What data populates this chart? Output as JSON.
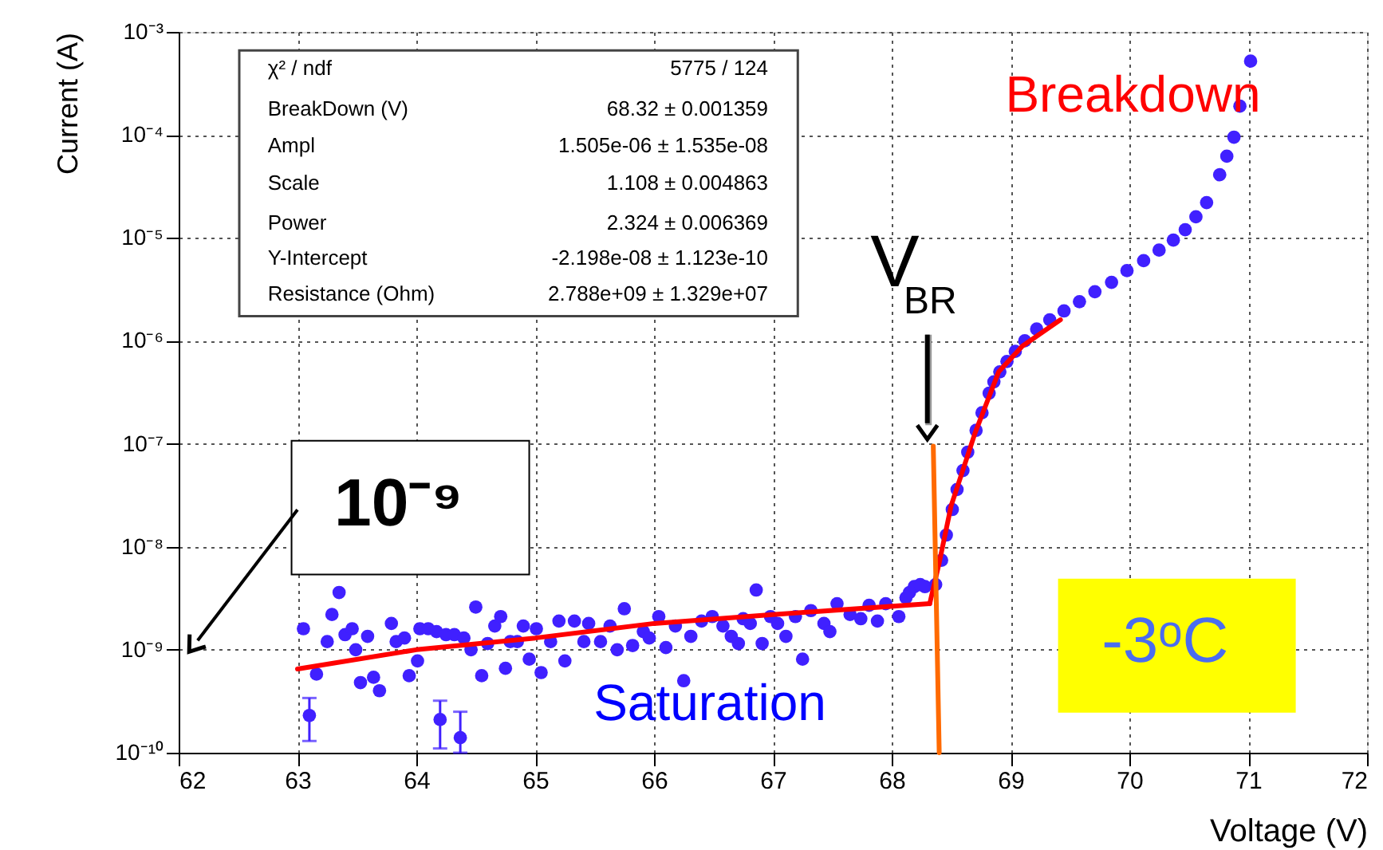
{
  "chart_data": {
    "type": "scatter",
    "xlabel": "Voltage (V)",
    "ylabel": "Current (A)",
    "xlim": [
      62,
      72
    ],
    "xticks": [
      62,
      63,
      64,
      65,
      66,
      67,
      68,
      69,
      70,
      71,
      72
    ],
    "ylim": [
      1e-10,
      0.001
    ],
    "log": true,
    "yticks": [
      {
        "value": 1e-10,
        "label": "10⁻¹⁰"
      },
      {
        "value": 1e-09,
        "label": "10⁻⁹"
      },
      {
        "value": 1e-08,
        "label": "10⁻⁸"
      },
      {
        "value": 1e-07,
        "label": "10⁻⁷"
      },
      {
        "value": 1e-06,
        "label": "10⁻⁶"
      },
      {
        "value": 1e-05,
        "label": "10⁻⁵"
      },
      {
        "value": 0.0001,
        "label": "10⁻⁴"
      },
      {
        "value": 0.001,
        "label": "10⁻³"
      }
    ],
    "grid": true,
    "series": [
      {
        "color": "#4020ff",
        "marker": "circle",
        "x": [
          63.05,
          63.1,
          63.16,
          63.25,
          63.29,
          63.35,
          63.4,
          63.46,
          63.49,
          63.53,
          63.59,
          63.64,
          63.69,
          63.79,
          63.83,
          63.9,
          63.94,
          64.01,
          64.03,
          64.1,
          64.17,
          64.2,
          64.25,
          64.32,
          64.37,
          64.4,
          64.46,
          64.5,
          64.55,
          64.6,
          64.66,
          64.71,
          64.75,
          64.79,
          64.85,
          64.9,
          64.95,
          65.01,
          65.05,
          65.13,
          65.2,
          65.25,
          65.33,
          65.41,
          65.45,
          65.55,
          65.63,
          65.69,
          65.75,
          65.82,
          65.91,
          65.96,
          66.04,
          66.1,
          66.18,
          66.25,
          66.31,
          66.4,
          66.49,
          66.58,
          66.65,
          66.71,
          66.75,
          66.81,
          66.86,
          66.91,
          66.98,
          67.04,
          67.11,
          67.19,
          67.25,
          67.32,
          67.43,
          67.48,
          67.54,
          67.65,
          67.74,
          67.81,
          67.88,
          67.95,
          68.06,
          68.12,
          68.15,
          68.19,
          68.24,
          68.28,
          68.37,
          68.42,
          68.46,
          68.51,
          68.55,
          68.6,
          68.64,
          68.71,
          68.76,
          68.82,
          68.86,
          68.91,
          68.97,
          69.04,
          69.12,
          69.22,
          69.33,
          69.45,
          69.58,
          69.71,
          69.85,
          69.98,
          70.12,
          70.25,
          70.37,
          70.47,
          70.56,
          70.65,
          70.76,
          70.82,
          70.88,
          70.93,
          71.02
        ],
        "values": [
          1.6e-09,
          2.3e-10,
          5.8e-10,
          1.2e-09,
          2.2e-09,
          3.6e-09,
          1.4e-09,
          1.6e-09,
          1e-09,
          4.8e-10,
          1.35e-09,
          5.4e-10,
          4e-10,
          1.8e-09,
          1.2e-09,
          1.3e-09,
          5.6e-10,
          7.8e-10,
          1.6e-09,
          1.6e-09,
          1.5e-09,
          2.1e-10,
          1.4e-09,
          1.4e-09,
          1.4e-10,
          1.3e-09,
          1e-09,
          2.6e-09,
          5.6e-10,
          1.15e-09,
          1.7e-09,
          2.1e-09,
          6.6e-10,
          1.2e-09,
          1.2e-09,
          1.7e-09,
          8.1e-10,
          1.6e-09,
          6e-10,
          1.2e-09,
          1.9e-09,
          7.8e-10,
          1.9e-09,
          1.2e-09,
          1.8e-09,
          1.2e-09,
          1.7e-09,
          1e-09,
          2.5e-09,
          1.1e-09,
          1.5e-09,
          1.3e-09,
          2.1e-09,
          1.05e-09,
          1.7e-09,
          5e-10,
          1.35e-09,
          1.9e-09,
          2.1e-09,
          1.7e-09,
          1.35e-09,
          1.15e-09,
          2e-09,
          1.8e-09,
          3.8e-09,
          1.15e-09,
          2.1e-09,
          1.8e-09,
          1.35e-09,
          2.1e-09,
          8.1e-10,
          2.4e-09,
          1.8e-09,
          1.5e-09,
          2.8e-09,
          2.2e-09,
          2e-09,
          2.7e-09,
          1.9e-09,
          2.8e-09,
          2.1e-09,
          3.2e-09,
          3.6e-09,
          4.1e-09,
          4.3e-09,
          4.1e-09,
          4.3e-09,
          7.4e-09,
          1.3e-08,
          2.3e-08,
          3.6e-08,
          5.5e-08,
          8.3e-08,
          1.35e-07,
          2e-07,
          3.1e-07,
          4e-07,
          5e-07,
          6.3e-07,
          7.9e-07,
          1e-06,
          1.3e-06,
          1.6e-06,
          1.95e-06,
          2.4e-06,
          3e-06,
          3.7e-06,
          4.8e-06,
          6e-06,
          7.6e-06,
          9.5e-06,
          1.2e-05,
          1.6e-05,
          2.2e-05,
          4.1e-05,
          6.2e-05,
          9.5e-05,
          0.00019,
          0.00052
        ],
        "errors": [
          null,
          [
            1.3e-10,
            3.4e-10
          ],
          null,
          null,
          null,
          null,
          null,
          null,
          null,
          null,
          null,
          null,
          null,
          null,
          null,
          null,
          null,
          null,
          null,
          null,
          null,
          [
            1.1e-10,
            3.2e-10
          ],
          null,
          null,
          [
            1e-10,
            2.5e-10
          ],
          null,
          null,
          null,
          null,
          null,
          null,
          null,
          null,
          null,
          null,
          null,
          null,
          null,
          null,
          null,
          null,
          null,
          null,
          null,
          null,
          null,
          null,
          null,
          null,
          null,
          null,
          null,
          null,
          null,
          null,
          null,
          null,
          null,
          null,
          null,
          null,
          null,
          null,
          null,
          null,
          null,
          null,
          null,
          null,
          null,
          null,
          null,
          null,
          null,
          null,
          null,
          null,
          null,
          null,
          null,
          null,
          null,
          null,
          null,
          null,
          null,
          null,
          null,
          null,
          null,
          null,
          null,
          null,
          null,
          null,
          null,
          null,
          null,
          null,
          null,
          null,
          null,
          null,
          null,
          null,
          null,
          null,
          null,
          null,
          null,
          null,
          null,
          null,
          null,
          null,
          null,
          null,
          null,
          null
        ]
      },
      {
        "type": "line",
        "color": "#ff0000",
        "x": [
          63.0,
          64,
          65,
          66,
          67,
          68.32
        ],
        "values": [
          6.5e-10,
          1e-09,
          1.3e-09,
          1.8e-09,
          2.2e-09,
          2.8e-09
        ]
      },
      {
        "type": "line",
        "color": "#ff0000",
        "x": [
          68.32,
          68.4,
          68.5,
          68.6,
          68.7,
          68.9,
          69.1,
          69.42
        ],
        "values": [
          2.8e-09,
          7e-09,
          2.5e-08,
          5.6e-08,
          1.26e-07,
          5e-07,
          8.9e-07,
          1.6e-06
        ]
      },
      {
        "type": "line",
        "color": "#ff6a00",
        "x": [
          68.35,
          68.4
        ],
        "values": [
          9.5e-08,
          1e-10
        ]
      }
    ],
    "annotations": [
      "χ² / ndf",
      "5775 / 124",
      "BreakDown (V)",
      "68.32 ± 0.001359",
      "Ampl",
      "1.505e-06 ± 1.535e-08",
      "Scale",
      "1.108 ± 0.004863",
      "Power",
      "2.324 ± 0.006369",
      "Y-Intercept",
      "-2.198e-08 ± 1.123e-10",
      "Resistance (Ohm)",
      "2.788e+09 ± 1.329e+07",
      "Breakdown",
      "Saturation",
      "V$_{BR}$",
      "10⁻⁹",
      "-3ᵒC"
    ]
  }
}
